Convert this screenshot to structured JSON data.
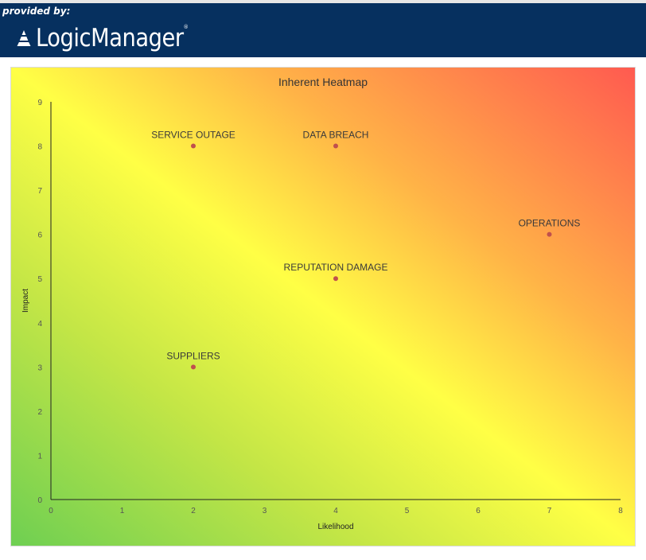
{
  "header": {
    "provided_by": "provided by:",
    "logo_text": "LogicManager",
    "logo_mark": "®"
  },
  "colors": {
    "banner": "#06305f",
    "point": "#c0504d",
    "low_risk": "#6ecf52",
    "mid_risk": "#ffff45",
    "high_risk": "#ff5a50"
  },
  "chart_data": {
    "type": "scatter",
    "title": "Inherent Heatmap",
    "xlabel": "Likelihood",
    "ylabel": "Impact",
    "xlim": [
      0,
      8
    ],
    "ylim": [
      0,
      9
    ],
    "xticks": [
      "0",
      "1",
      "2",
      "3",
      "4",
      "5",
      "6",
      "7",
      "8"
    ],
    "yticks": [
      "0",
      "1",
      "2",
      "3",
      "4",
      "5",
      "6",
      "7",
      "8",
      "9"
    ],
    "grid": false,
    "background": "diagonal gradient green (low) to yellow to red (high)",
    "points": [
      {
        "label": "SERVICE OUTAGE",
        "x": 2,
        "y": 8
      },
      {
        "label": "DATA BREACH",
        "x": 4,
        "y": 8
      },
      {
        "label": "OPERATIONS",
        "x": 7,
        "y": 6
      },
      {
        "label": "REPUTATION DAMAGE",
        "x": 4,
        "y": 5
      },
      {
        "label": "SUPPLIERS",
        "x": 2,
        "y": 3
      }
    ]
  }
}
